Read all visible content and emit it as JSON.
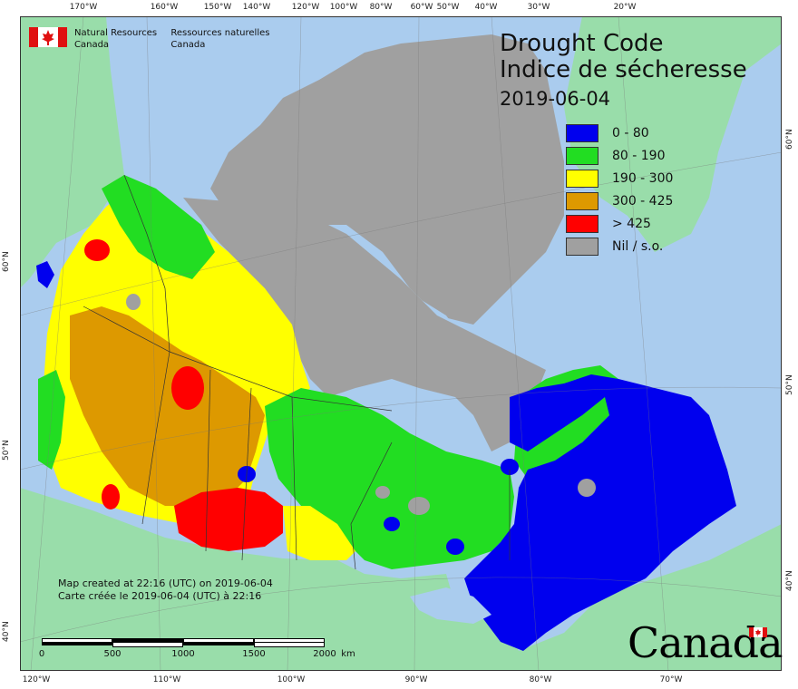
{
  "agency": {
    "name_en_line1": "Natural Resources",
    "name_en_line2": "Canada",
    "name_fr_line1": "Ressources naturelles",
    "name_fr_line2": "Canada"
  },
  "title": {
    "en": "Drought Code",
    "fr": "Indice de sécheresse",
    "date": "2019-06-04"
  },
  "legend": [
    {
      "label": "0 - 80",
      "color": "#0000ee"
    },
    {
      "label": "80 - 190",
      "color": "#22dd22"
    },
    {
      "label": "190 - 300",
      "color": "#ffff00"
    },
    {
      "label": "300 - 425",
      "color": "#dd9900"
    },
    {
      "label": "> 425",
      "color": "#ff0000"
    },
    {
      "label": "Nil / s.o.",
      "color": "#a0a0a0"
    }
  ],
  "created": {
    "en": "Map created at 22:16 (UTC) on 2019-06-04",
    "fr": "Carte créée le 2019-06-04 (UTC) à 22:16"
  },
  "scale": {
    "labels": [
      "0",
      "500",
      "1000",
      "1500",
      "2000"
    ],
    "unit": "km"
  },
  "graticule": {
    "top": [
      "170°W",
      "160°W",
      "150°W",
      "140°W",
      "120°W",
      "100°W",
      "80°W",
      "60°W",
      "50°W",
      "40°W",
      "30°W",
      "20°W"
    ],
    "bottom": [
      "120°W",
      "110°W",
      "100°W",
      "90°W",
      "80°W",
      "70°W"
    ],
    "left": [
      "60°N",
      "50°N",
      "40°N"
    ],
    "right": [
      "60°N",
      "50°N",
      "40°N"
    ]
  },
  "wordmark": "Canada",
  "colors": {
    "ocean": "#aaccee",
    "foreign_land": "#99ddaa",
    "nil": "#a0a0a0"
  }
}
